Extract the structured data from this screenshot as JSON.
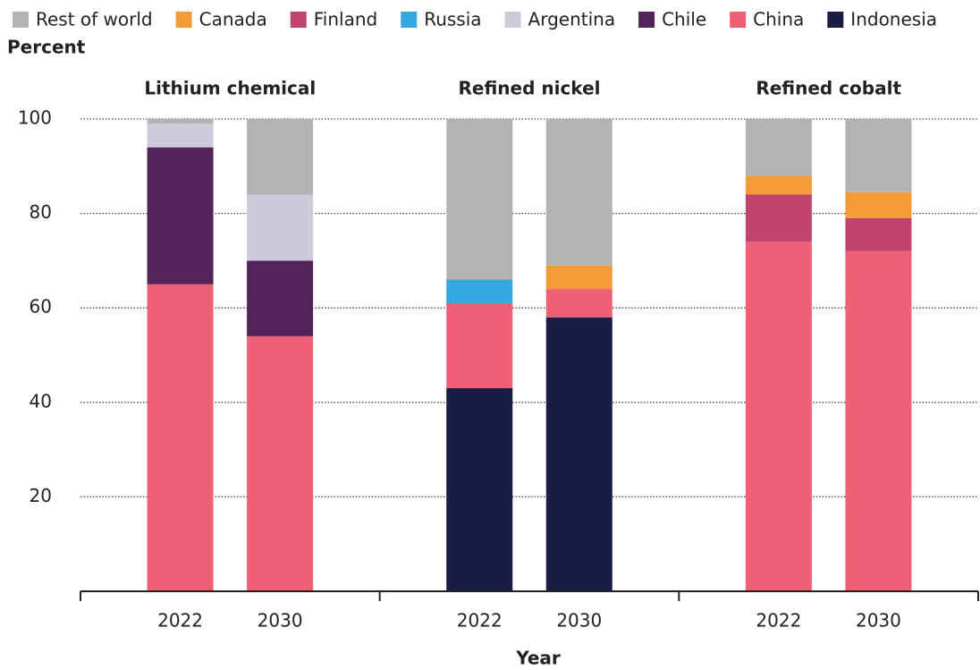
{
  "chart_data": {
    "type": "bar",
    "stacked": true,
    "ylabel": "Percent",
    "xlabel": "Year",
    "groups": [
      "Lithium chemical",
      "Refined nickel",
      "Refined cobalt"
    ],
    "categories": [
      "2022",
      "2030",
      "2022",
      "2030",
      "2022",
      "2030"
    ],
    "series": [
      {
        "name": "Rest of world",
        "color": "#b3b3b3",
        "values": [
          1,
          16,
          34,
          31,
          12,
          15.5
        ]
      },
      {
        "name": "Canada",
        "color": "#f29b38",
        "values": [
          0,
          0,
          0,
          5,
          4,
          5.5
        ]
      },
      {
        "name": "Finland",
        "color": "#c0446f",
        "values": [
          0,
          0,
          0,
          0,
          10,
          7
        ]
      },
      {
        "name": "Russia",
        "color": "#35a8e0",
        "values": [
          0,
          0,
          5,
          0,
          0,
          0
        ]
      },
      {
        "name": "Argentina",
        "color": "#cccadb",
        "values": [
          5,
          14,
          0,
          0,
          0,
          0
        ]
      },
      {
        "name": "Chile",
        "color": "#52245a",
        "values": [
          29,
          16,
          0,
          0,
          0,
          0
        ]
      },
      {
        "name": "China",
        "color": "#ef6074",
        "values": [
          65,
          54,
          18,
          6,
          74,
          72
        ]
      },
      {
        "name": "Indonesia",
        "color": "#1b1c45",
        "values": [
          0,
          0,
          43,
          58,
          0,
          0
        ]
      }
    ],
    "ylim": [
      0,
      100
    ],
    "yticks": [
      20,
      40,
      60,
      80,
      100
    ],
    "grid": true
  }
}
